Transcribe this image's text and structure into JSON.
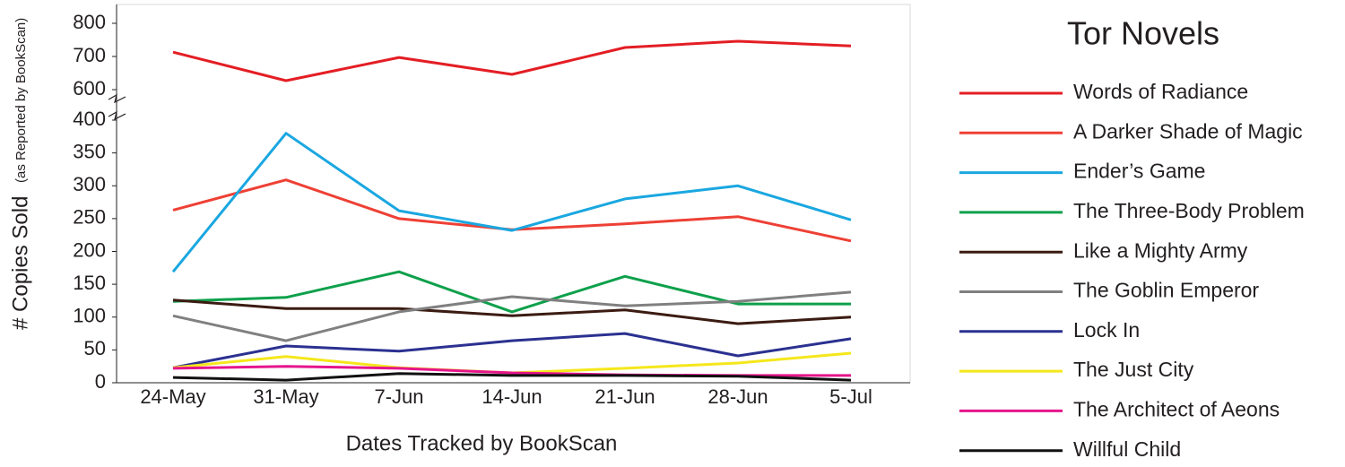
{
  "chart_data": {
    "type": "line",
    "title": "Tor Novels",
    "xlabel": "Dates Tracked by BookScan",
    "ylabel": "# Copies Sold",
    "ylabel_note": "(as Reported by BookScan)",
    "categories": [
      "24-May",
      "31-May",
      "7-Jun",
      "14-Jun",
      "21-Jun",
      "28-Jun",
      "5-Jul"
    ],
    "ylim": [
      0,
      800
    ],
    "ybreak": [
      400,
      600
    ],
    "yticks": [
      0,
      50,
      100,
      150,
      200,
      250,
      300,
      350,
      400,
      600,
      700,
      800
    ],
    "series": [
      {
        "name": "Words of Radiance",
        "color": "#e31e24",
        "values": [
          713,
          627,
          697,
          646,
          727,
          746,
          732
        ]
      },
      {
        "name": "A Darker Shade of Magic",
        "color": "#ee4035",
        "values": [
          263,
          309,
          250,
          233,
          242,
          253,
          216
        ]
      },
      {
        "name": "Ender’s Game",
        "color": "#1aa7e0",
        "values": [
          169,
          380,
          262,
          232,
          280,
          300,
          248
        ]
      },
      {
        "name": "The Three-Body Problem",
        "color": "#0ea04b",
        "values": [
          124,
          130,
          169,
          108,
          162,
          120,
          120
        ]
      },
      {
        "name": "Like a Mighty Army",
        "color": "#3b1b12",
        "values": [
          126,
          113,
          113,
          102,
          111,
          90,
          100
        ]
      },
      {
        "name": "The Goblin Emperor",
        "color": "#808080",
        "values": [
          102,
          64,
          108,
          131,
          117,
          124,
          138
        ]
      },
      {
        "name": "Lock In",
        "color": "#2b3190",
        "values": [
          23,
          56,
          48,
          64,
          75,
          41,
          67
        ]
      },
      {
        "name": "The Just City",
        "color": "#f5e71b",
        "values": [
          23,
          40,
          23,
          15,
          22,
          30,
          45
        ]
      },
      {
        "name": "The Architect of Aeons",
        "color": "#e5158c",
        "values": [
          22,
          25,
          22,
          15,
          12,
          11,
          11
        ]
      },
      {
        "name": "Willful Child",
        "color": "#111111",
        "values": [
          8,
          4,
          14,
          11,
          11,
          10,
          4
        ]
      }
    ]
  }
}
